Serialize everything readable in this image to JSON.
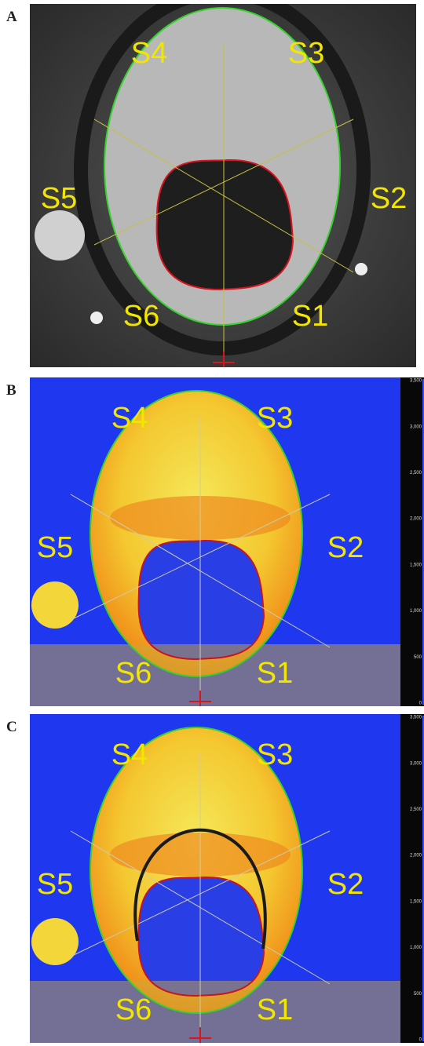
{
  "panels": [
    {
      "label": "A",
      "segments": [
        "S1",
        "S2",
        "S3",
        "S4",
        "S5",
        "S6"
      ]
    },
    {
      "label": "B",
      "segments": [
        "S1",
        "S2",
        "S3",
        "S4",
        "S5",
        "S6"
      ],
      "colorbar": [
        "3,500",
        "3,000",
        "2,500",
        "2,000",
        "1,500",
        "1,000",
        "500",
        "0"
      ]
    },
    {
      "label": "C",
      "segments": [
        "S1",
        "S2",
        "S3",
        "S4",
        "S5",
        "S6"
      ],
      "colorbar": [
        "3,500",
        "3,000",
        "2,500",
        "2,000",
        "1,500",
        "1,000",
        "500",
        "0"
      ]
    }
  ]
}
